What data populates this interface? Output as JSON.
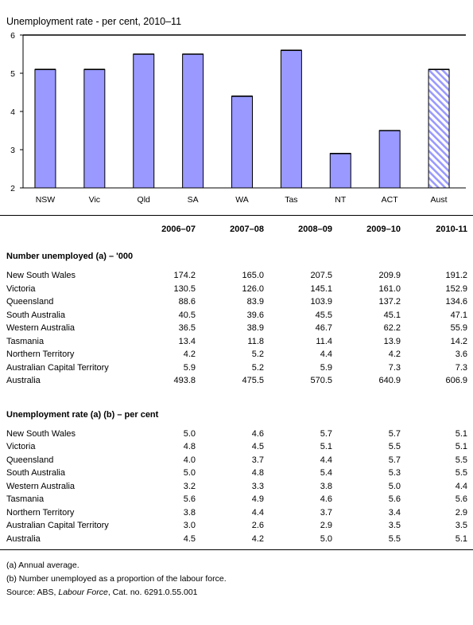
{
  "chart_data": {
    "type": "bar",
    "title": "Unemployment rate - per cent, 2010–11",
    "categories": [
      "NSW",
      "Vic",
      "Qld",
      "SA",
      "WA",
      "Tas",
      "NT",
      "ACT",
      "Aust"
    ],
    "values": [
      5.1,
      5.1,
      5.5,
      5.5,
      4.4,
      5.6,
      2.9,
      3.5,
      5.1
    ],
    "ylim": [
      2,
      6
    ],
    "yticks": [
      "2",
      "3",
      "4",
      "5",
      "6"
    ],
    "grid": false,
    "legend": "none",
    "colors": {
      "bar": "#9999ff",
      "aust_hatch": "#9999ff",
      "outline": "#000000"
    },
    "highlight_category": "Aust",
    "highlight_style": "diagonal-hatch"
  },
  "table": {
    "columns": [
      "2006–07",
      "2007–08",
      "2008–09",
      "2009–10",
      "2010-11"
    ],
    "sections": [
      {
        "heading": "Number unemployed (a) – '000",
        "rows": [
          {
            "label": "New South Wales",
            "values": [
              "174.2",
              "165.0",
              "207.5",
              "209.9",
              "191.2"
            ]
          },
          {
            "label": "Victoria",
            "values": [
              "130.5",
              "126.0",
              "145.1",
              "161.0",
              "152.9"
            ]
          },
          {
            "label": "Queensland",
            "values": [
              "88.6",
              "83.9",
              "103.9",
              "137.2",
              "134.6"
            ]
          },
          {
            "label": "South Australia",
            "values": [
              "40.5",
              "39.6",
              "45.5",
              "45.1",
              "47.1"
            ]
          },
          {
            "label": "Western Australia",
            "values": [
              "36.5",
              "38.9",
              "46.7",
              "62.2",
              "55.9"
            ]
          },
          {
            "label": "Tasmania",
            "values": [
              "13.4",
              "11.8",
              "11.4",
              "13.9",
              "14.2"
            ]
          },
          {
            "label": "Northern Territory",
            "values": [
              "4.2",
              "5.2",
              "4.4",
              "4.2",
              "3.6"
            ]
          },
          {
            "label": "Australian Capital Territory",
            "values": [
              "5.9",
              "5.2",
              "5.9",
              "7.3",
              "7.3"
            ]
          },
          {
            "label": "Australia",
            "values": [
              "493.8",
              "475.5",
              "570.5",
              "640.9",
              "606.9"
            ]
          }
        ]
      },
      {
        "heading": "Unemployment rate (a) (b) – per cent",
        "rows": [
          {
            "label": "New South Wales",
            "values": [
              "5.0",
              "4.6",
              "5.7",
              "5.7",
              "5.1"
            ]
          },
          {
            "label": "Victoria",
            "values": [
              "4.8",
              "4.5",
              "5.1",
              "5.5",
              "5.1"
            ]
          },
          {
            "label": "Queensland",
            "values": [
              "4.0",
              "3.7",
              "4.4",
              "5.7",
              "5.5"
            ]
          },
          {
            "label": "South Australia",
            "values": [
              "5.0",
              "4.8",
              "5.4",
              "5.3",
              "5.5"
            ]
          },
          {
            "label": "Western Australia",
            "values": [
              "3.2",
              "3.3",
              "3.8",
              "5.0",
              "4.4"
            ]
          },
          {
            "label": "Tasmania",
            "values": [
              "5.6",
              "4.9",
              "4.6",
              "5.6",
              "5.6"
            ]
          },
          {
            "label": "Northern Territory",
            "values": [
              "3.8",
              "4.4",
              "3.7",
              "3.4",
              "2.9"
            ]
          },
          {
            "label": "Australian Capital Territory",
            "values": [
              "3.0",
              "2.6",
              "2.9",
              "3.5",
              "3.5"
            ]
          },
          {
            "label": "Australia",
            "values": [
              "4.5",
              "4.2",
              "5.0",
              "5.5",
              "5.1"
            ]
          }
        ]
      }
    ]
  },
  "notes": {
    "note_a": "(a) Annual average.",
    "note_b": "(b) Number unemployed as a proportion of the labour force.",
    "source_prefix": "Source: ABS, ",
    "source_title": "Labour Force",
    "source_suffix": ", Cat. no. 6291.0.55.001"
  }
}
